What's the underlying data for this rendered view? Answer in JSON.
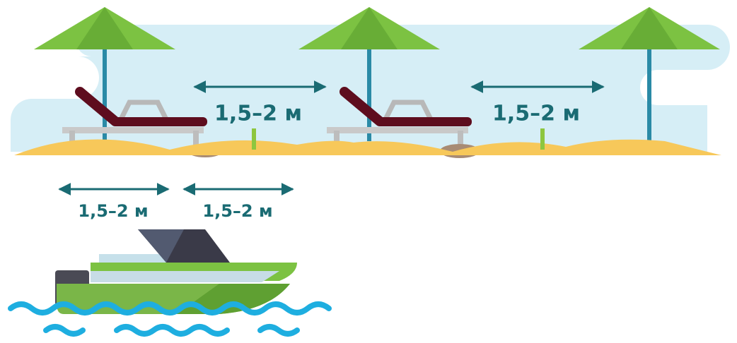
{
  "beach": {
    "gaps": [
      {
        "label": "1,5–2 м"
      },
      {
        "label": "1,5–2 м"
      }
    ]
  },
  "boat": {
    "gaps": [
      {
        "label": "1,5–2 м"
      },
      {
        "label": "1,5–2 м"
      }
    ]
  }
}
